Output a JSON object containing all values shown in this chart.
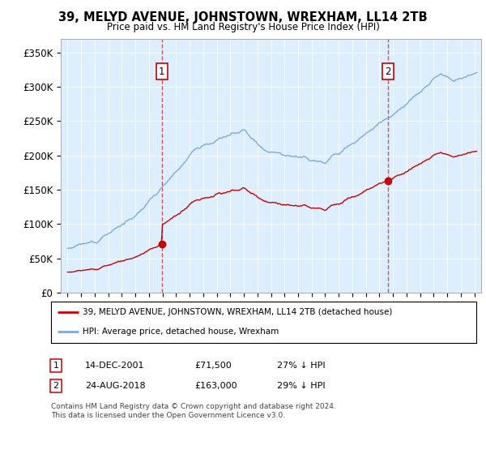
{
  "title": "39, MELYD AVENUE, JOHNSTOWN, WREXHAM, LL14 2TB",
  "subtitle": "Price paid vs. HM Land Registry's House Price Index (HPI)",
  "sale1_price": 71500,
  "sale1_year_x": 2001.958,
  "sale2_price": 163000,
  "sale2_year_x": 2018.625,
  "ylabel_ticks": [
    "£0",
    "£50K",
    "£100K",
    "£150K",
    "£200K",
    "£250K",
    "£300K",
    "£350K"
  ],
  "ytick_vals": [
    0,
    50000,
    100000,
    150000,
    200000,
    250000,
    300000,
    350000
  ],
  "ylim": [
    0,
    370000
  ],
  "xlim_start": 1994.5,
  "xlim_end": 2025.5,
  "legend_property_label": "39, MELYD AVENUE, JOHNSTOWN, WREXHAM, LL14 2TB (detached house)",
  "legend_hpi_label": "HPI: Average price, detached house, Wrexham",
  "footnote1": "Contains HM Land Registry data © Crown copyright and database right 2024.",
  "footnote2": "This data is licensed under the Open Government Licence v3.0.",
  "info1_label": "1",
  "info1_date": "14-DEC-2001",
  "info1_price": "£71,500",
  "info1_hpi": "27% ↓ HPI",
  "info2_label": "2",
  "info2_date": "24-AUG-2018",
  "info2_price": "£163,000",
  "info2_hpi": "29% ↓ HPI",
  "property_color": "#cc0000",
  "hpi_color": "#7aabdc",
  "sale_marker_color": "#cc0000",
  "plot_bg": "#ddeeff"
}
